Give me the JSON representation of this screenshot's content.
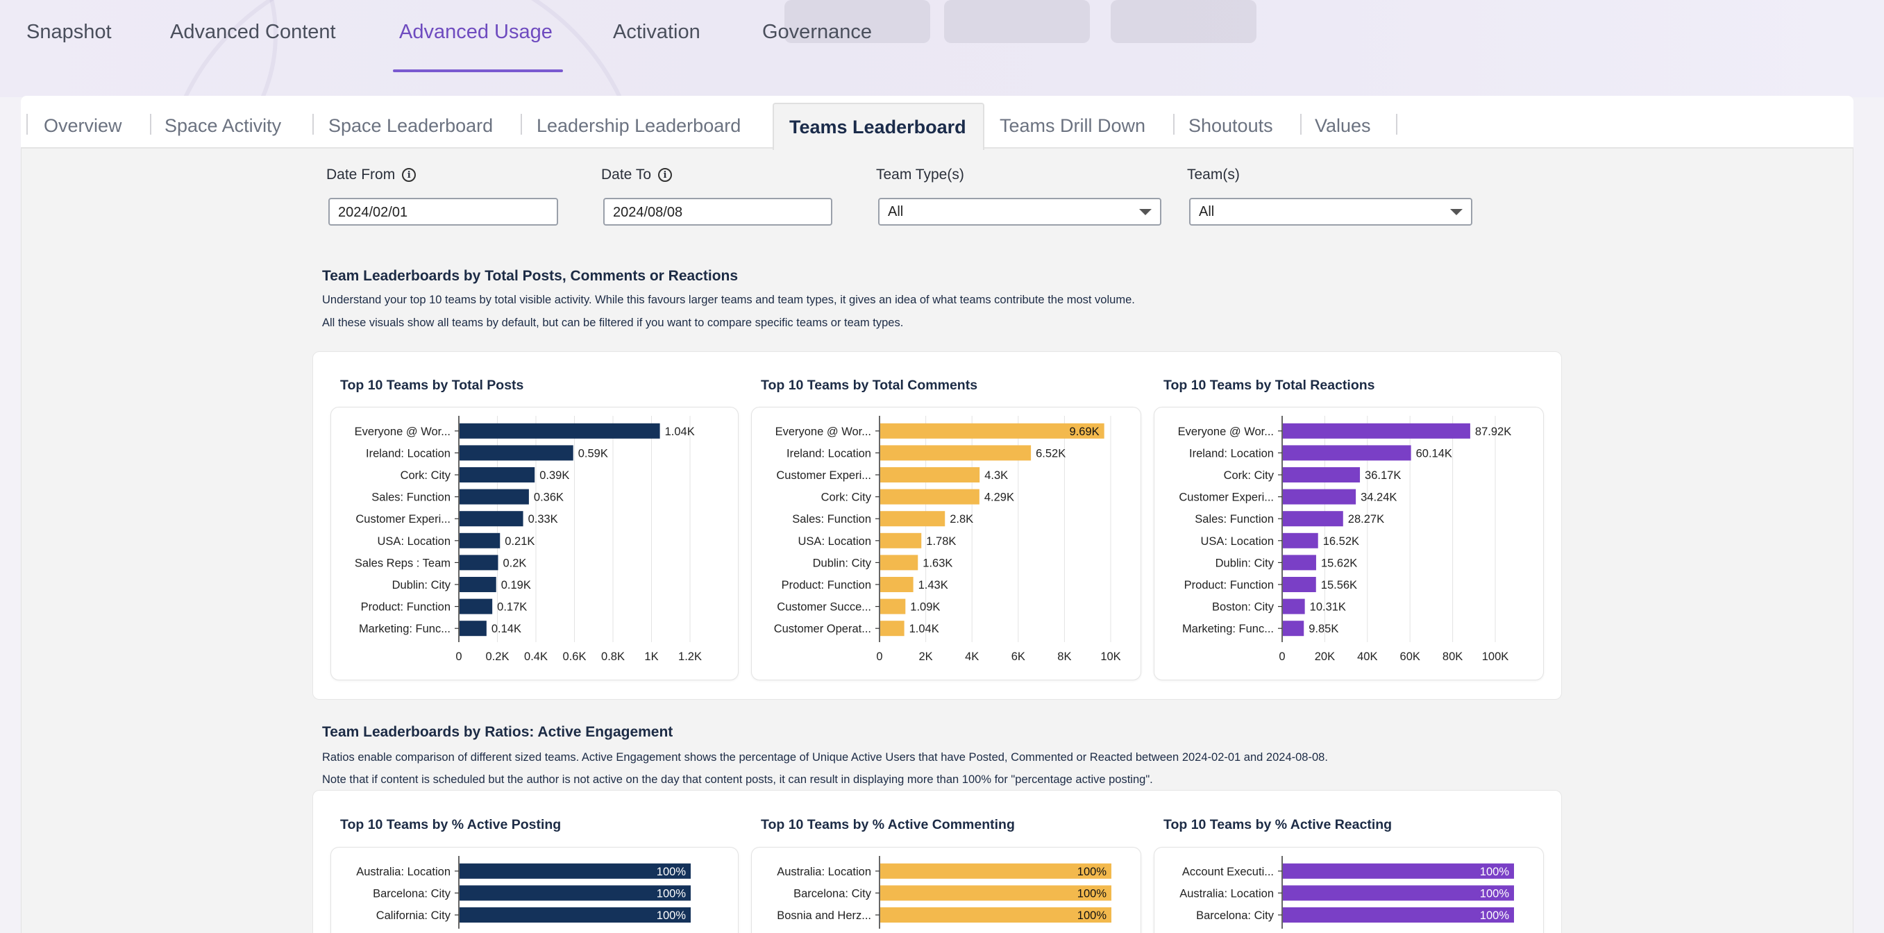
{
  "top_tabs": [
    {
      "label": "Snapshot",
      "active": false
    },
    {
      "label": "Advanced Content",
      "active": false
    },
    {
      "label": "Advanced Usage",
      "active": true
    },
    {
      "label": "Activation",
      "active": false
    },
    {
      "label": "Governance",
      "active": false
    }
  ],
  "sub_tabs": [
    {
      "label": "Overview"
    },
    {
      "label": "Space Activity"
    },
    {
      "label": "Space Leaderboard"
    },
    {
      "label": "Leadership Leaderboard"
    },
    {
      "label": "Teams Leaderboard",
      "active": true
    },
    {
      "label": "Teams Drill Down"
    },
    {
      "label": "Shoutouts"
    },
    {
      "label": "Values"
    }
  ],
  "filters": {
    "date_from": {
      "label": "Date From",
      "value": "2024/02/01"
    },
    "date_to": {
      "label": "Date To",
      "value": "2024/08/08"
    },
    "team_types": {
      "label": "Team Type(s)",
      "value": "All"
    },
    "teams": {
      "label": "Team(s)",
      "value": "All"
    }
  },
  "section1": {
    "title": "Team Leaderboards by Total Posts, Comments or Reactions",
    "line1": "Understand your top 10 teams by total visible activity. While this favours larger teams and team types, it gives an idea of what teams contribute the most volume.",
    "line2": "All these visuals show all teams by default, but can be filtered if you want to compare specific teams or team types."
  },
  "section2": {
    "title": "Team Leaderboards by Ratios: Active Engagement",
    "line1": "Ratios enable comparison of different sized teams. Active Engagement shows the percentage of Unique Active Users that have Posted, Commented or Reacted between 2024-02-01 and 2024-08-08.",
    "line2": "Note that if content is scheduled but the author is not active on the day that content posts, it can result in displaying more than 100% for \"percentage active posting\"."
  },
  "colors": {
    "posts": "#14325a",
    "comments": "#f3b94d",
    "reactions": "#7a3fc6"
  },
  "chart_data": [
    {
      "id": "posts",
      "type": "bar",
      "title": "Top 10 Teams by Total Posts",
      "categories": [
        "Everyone @ Wor...",
        "Ireland: Location",
        "Cork: City",
        "Sales: Function",
        "Customer Experi...",
        "USA: Location",
        "Sales Reps : Team",
        "Dublin: City",
        "Product: Function",
        "Marketing: Func..."
      ],
      "values": [
        1040,
        590,
        390,
        360,
        330,
        210,
        200,
        190,
        170,
        140
      ],
      "labels": [
        "1.04K",
        "0.59K",
        "0.39K",
        "0.36K",
        "0.33K",
        "0.21K",
        "0.2K",
        "0.19K",
        "0.17K",
        "0.14K"
      ],
      "xlim": [
        0,
        1200
      ],
      "ticks": [
        0,
        200,
        400,
        600,
        800,
        1000,
        1200
      ],
      "tick_labels": [
        "0",
        "0.2K",
        "0.4K",
        "0.6K",
        "0.8K",
        "1K",
        "1.2K"
      ]
    },
    {
      "id": "comments",
      "type": "bar",
      "title": "Top 10 Teams by Total Comments",
      "categories": [
        "Everyone @ Wor...",
        "Ireland: Location",
        "Customer Experi...",
        "Cork: City",
        "Sales: Function",
        "USA: Location",
        "Dublin: City",
        "Product: Function",
        "Customer Succe...",
        "Customer Operat..."
      ],
      "values": [
        9690,
        6520,
        4300,
        4290,
        2800,
        1780,
        1630,
        1430,
        1090,
        1040
      ],
      "labels": [
        "9.69K",
        "6.52K",
        "4.3K",
        "4.29K",
        "2.8K",
        "1.78K",
        "1.63K",
        "1.43K",
        "1.09K",
        "1.04K"
      ],
      "xlim": [
        0,
        10000
      ],
      "ticks": [
        0,
        2000,
        4000,
        6000,
        8000,
        10000
      ],
      "tick_labels": [
        "0",
        "2K",
        "4K",
        "6K",
        "8K",
        "10K"
      ]
    },
    {
      "id": "reactions",
      "type": "bar",
      "title": "Top 10 Teams by Total Reactions",
      "categories": [
        "Everyone @ Wor...",
        "Ireland: Location",
        "Cork: City",
        "Customer Experi...",
        "Sales: Function",
        "USA: Location",
        "Dublin: City",
        "Product: Function",
        "Boston: City",
        "Marketing: Func..."
      ],
      "values": [
        87920,
        60140,
        36170,
        34240,
        28270,
        16520,
        15620,
        15560,
        10310,
        9850
      ],
      "labels": [
        "87.92K",
        "60.14K",
        "36.17K",
        "34.24K",
        "28.27K",
        "16.52K",
        "15.62K",
        "15.56K",
        "10.31K",
        "9.85K"
      ],
      "xlim": [
        0,
        100000
      ],
      "ticks": [
        0,
        20000,
        40000,
        60000,
        80000,
        100000
      ],
      "tick_labels": [
        "0",
        "20K",
        "40K",
        "60K",
        "80K",
        "100K"
      ]
    },
    {
      "id": "active_posting",
      "type": "bar",
      "title": "Top 10 Teams by % Active Posting",
      "categories": [
        "Australia: Location",
        "Barcelona: City",
        "California: City"
      ],
      "values": [
        100,
        100,
        100
      ],
      "labels": [
        "100%",
        "100%",
        "100%"
      ],
      "xlim": [
        0,
        100
      ]
    },
    {
      "id": "active_commenting",
      "type": "bar",
      "title": "Top 10 Teams by % Active Commenting",
      "categories": [
        "Australia: Location",
        "Barcelona: City",
        "Bosnia and Herz..."
      ],
      "values": [
        100,
        100,
        100
      ],
      "labels": [
        "100%",
        "100%",
        "100%"
      ],
      "xlim": [
        0,
        100
      ]
    },
    {
      "id": "active_reacting",
      "type": "bar",
      "title": "Top 10 Teams by % Active Reacting",
      "categories": [
        "Account Executi...",
        "Australia: Location",
        "Barcelona: City"
      ],
      "values": [
        100,
        100,
        100
      ],
      "labels": [
        "100%",
        "100%",
        "100%"
      ],
      "xlim": [
        0,
        100
      ]
    }
  ]
}
